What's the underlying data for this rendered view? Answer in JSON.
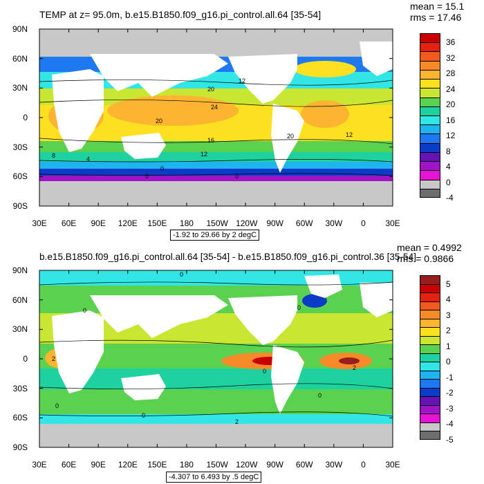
{
  "chart_data": [
    {
      "type": "heatmap",
      "title": "TEMP at z=  95.0m, b.e15.B1850.f09_g16.pi_control.all.64 [35-54]",
      "stats": {
        "mean": "mean = 15.1",
        "rms": "rms = 17.46"
      },
      "range_label": "-1.92 to 29.66 by 2 degC",
      "xticks": [
        "30E",
        "60E",
        "90E",
        "120E",
        "150E",
        "180",
        "150W",
        "120W",
        "90W",
        "60W",
        "30W",
        "0",
        "30E"
      ],
      "yticks": [
        "90N",
        "60N",
        "30N",
        "0",
        "30S",
        "60S",
        "90S"
      ],
      "colorbar": {
        "labels": [
          "36",
          "32",
          "28",
          "24",
          "20",
          "16",
          "12",
          "8",
          "4",
          "0",
          "-4"
        ],
        "colors": [
          "#c80000",
          "#e42010",
          "#f05a1e",
          "#f78a28",
          "#fdb430",
          "#fde020",
          "#c8e632",
          "#5ad250",
          "#1ed2a0",
          "#32e6e6",
          "#1eb4f0",
          "#1e78f0",
          "#0a3cc8",
          "#6414b4",
          "#a014c8",
          "#e614d2",
          "#c8c8c8",
          "#6e6e6e"
        ]
      },
      "contour_labels": [
        "12",
        "20",
        "24",
        "20",
        "16",
        "20",
        "12",
        "12",
        "8",
        "4",
        "0",
        "0",
        "0"
      ]
    },
    {
      "type": "heatmap",
      "title": "b.e15.B1850.f09_g16.pi_control.all.64 [35-54] - b.e15.B1850.f09_g16.pi_control.36 [35-54]",
      "stats": {
        "mean": "mean = 0.4992",
        "rms": "rms = 0.9866"
      },
      "range_label": "-4.307 to 6.493 by .5 degC",
      "xticks": [
        "30E",
        "60E",
        "90E",
        "120E",
        "150E",
        "180",
        "150W",
        "120W",
        "90W",
        "60W",
        "30W",
        "0",
        "30E"
      ],
      "yticks": [
        "90N",
        "60N",
        "30N",
        "0",
        "30S",
        "60S",
        "90S"
      ],
      "colorbar": {
        "labels": [
          "5",
          "4",
          "3",
          "2",
          "1",
          "0",
          "-1",
          "-2",
          "-3",
          "-4",
          "-5"
        ],
        "colors": [
          "#961e1e",
          "#c80000",
          "#e42010",
          "#f05a1e",
          "#f78a28",
          "#fdb430",
          "#fde020",
          "#c8e632",
          "#5ad250",
          "#1ed2a0",
          "#32e6e6",
          "#1eb4f0",
          "#1e78f0",
          "#0a3cc8",
          "#6414b4",
          "#a014c8",
          "#e614d2",
          "#c8c8c8",
          "#6e6e6e"
        ]
      },
      "contour_labels": [
        "0",
        "0",
        "2",
        "0",
        "2",
        "0",
        "0",
        "2",
        "0",
        "0"
      ]
    }
  ]
}
